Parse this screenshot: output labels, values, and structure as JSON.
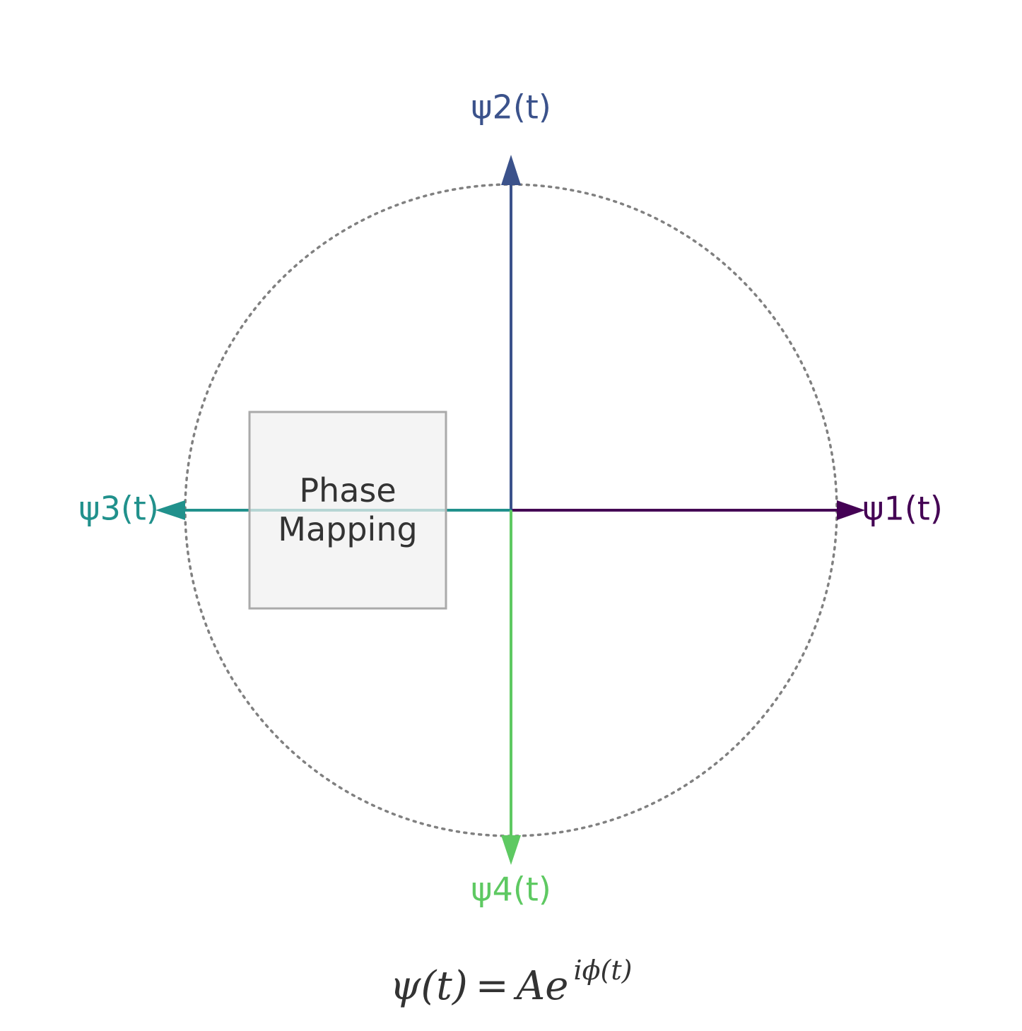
{
  "colors": {
    "psi1": "#440154",
    "psi2": "#3b528b",
    "psi3": "#21918c",
    "psi4": "#5ec962",
    "circle": "#808080",
    "box_fill": "#f0f0f0",
    "box_stroke": "#aaaaaa",
    "text": "#333333"
  },
  "vectors": [
    {
      "id": "psi1",
      "label": "ψ1(t)",
      "direction": "right"
    },
    {
      "id": "psi2",
      "label": "ψ2(t)",
      "direction": "up"
    },
    {
      "id": "psi3",
      "label": "ψ3(t)",
      "direction": "left"
    },
    {
      "id": "psi4",
      "label": "ψ4(t)",
      "direction": "down"
    }
  ],
  "box": {
    "line1": "Phase",
    "line2": "Mapping"
  },
  "formula": {
    "lhs": "ψ(t)",
    "equals": "=",
    "base": "Ae",
    "exponent": "iϕ(t)"
  }
}
